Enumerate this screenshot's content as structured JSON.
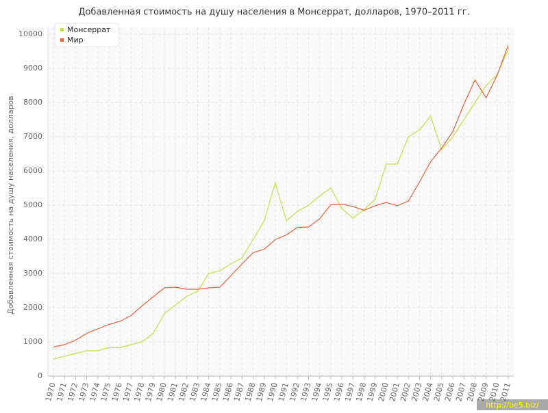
{
  "chart_data": {
    "type": "line",
    "title": "Добавленная стоимость на душу населения в Монсеррат, долларов, 1970–2011 гг.",
    "y_label": "Добавленная стоимость на душу населения, долларов",
    "watermark": "http://be5.biz/",
    "categories": [
      "1970",
      "1971",
      "1972",
      "1973",
      "1974",
      "1975",
      "1976",
      "1977",
      "1978",
      "1979",
      "1980",
      "1981",
      "1982",
      "1983",
      "1984",
      "1985",
      "1986",
      "1987",
      "1988",
      "1989",
      "1990",
      "1991",
      "1992",
      "1993",
      "1994",
      "1995",
      "1996",
      "1997",
      "1998",
      "1999",
      "2000",
      "2001",
      "2002",
      "2003",
      "2004",
      "2005",
      "2006",
      "2007",
      "2008",
      "2009",
      "2010",
      "2011"
    ],
    "series": [
      {
        "name": "Монсеррат",
        "color": "#c8dc4c",
        "values": [
          500,
          580,
          660,
          740,
          740,
          830,
          830,
          920,
          1000,
          1250,
          1830,
          2080,
          2330,
          2480,
          3000,
          3080,
          3280,
          3460,
          4000,
          4540,
          5650,
          4540,
          4820,
          5000,
          5270,
          5500,
          4900,
          4620,
          4870,
          5170,
          6200,
          6200,
          7000,
          7200,
          7600,
          6620,
          7000,
          7500,
          8000,
          8500,
          8820,
          9550
        ]
      },
      {
        "name": "Мир",
        "color": "#e0643c",
        "values": [
          850,
          920,
          1050,
          1250,
          1380,
          1510,
          1600,
          1770,
          2060,
          2320,
          2580,
          2600,
          2540,
          2540,
          2580,
          2600,
          2940,
          3280,
          3610,
          3710,
          3990,
          4130,
          4350,
          4360,
          4600,
          5010,
          5030,
          4960,
          4850,
          4980,
          5080,
          4980,
          5120,
          5680,
          6270,
          6670,
          7150,
          7950,
          8660,
          8140,
          8800,
          9680
        ]
      }
    ],
    "ylim": [
      0,
      10000
    ],
    "yticks": [
      0,
      1000,
      2000,
      3000,
      4000,
      5000,
      6000,
      7000,
      8000,
      9000,
      10000
    ],
    "grid": true,
    "legend": "top-left"
  }
}
